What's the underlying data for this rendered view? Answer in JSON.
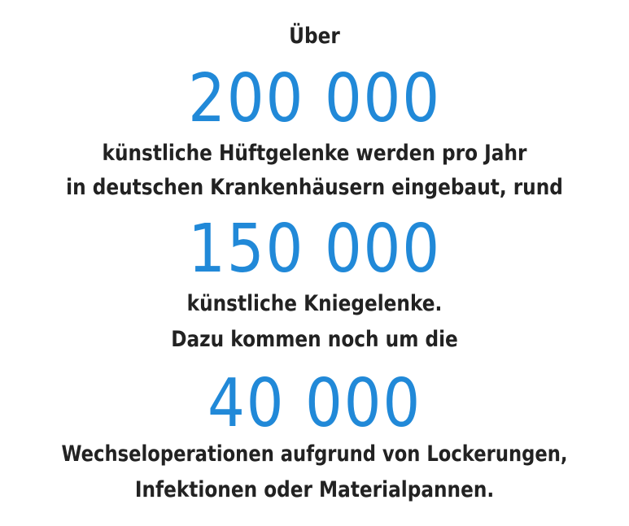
{
  "accent_color": "#2189d8",
  "text_color": "#222222",
  "lines": {
    "intro": "Über",
    "number_1": "200 000",
    "text_1a": "künstliche Hüftgelenke werden pro Jahr",
    "text_1b": "in deutschen Krankenhäusern eingebaut, rund",
    "number_2": "150 000",
    "text_2a": "künstliche Kniegelenke.",
    "text_2b": "Dazu kommen noch um die",
    "number_3": "40 000",
    "text_3a": "Wechseloperationen aufgrund von Lockerungen,",
    "text_3b": "Infektionen oder Materialpannen."
  }
}
